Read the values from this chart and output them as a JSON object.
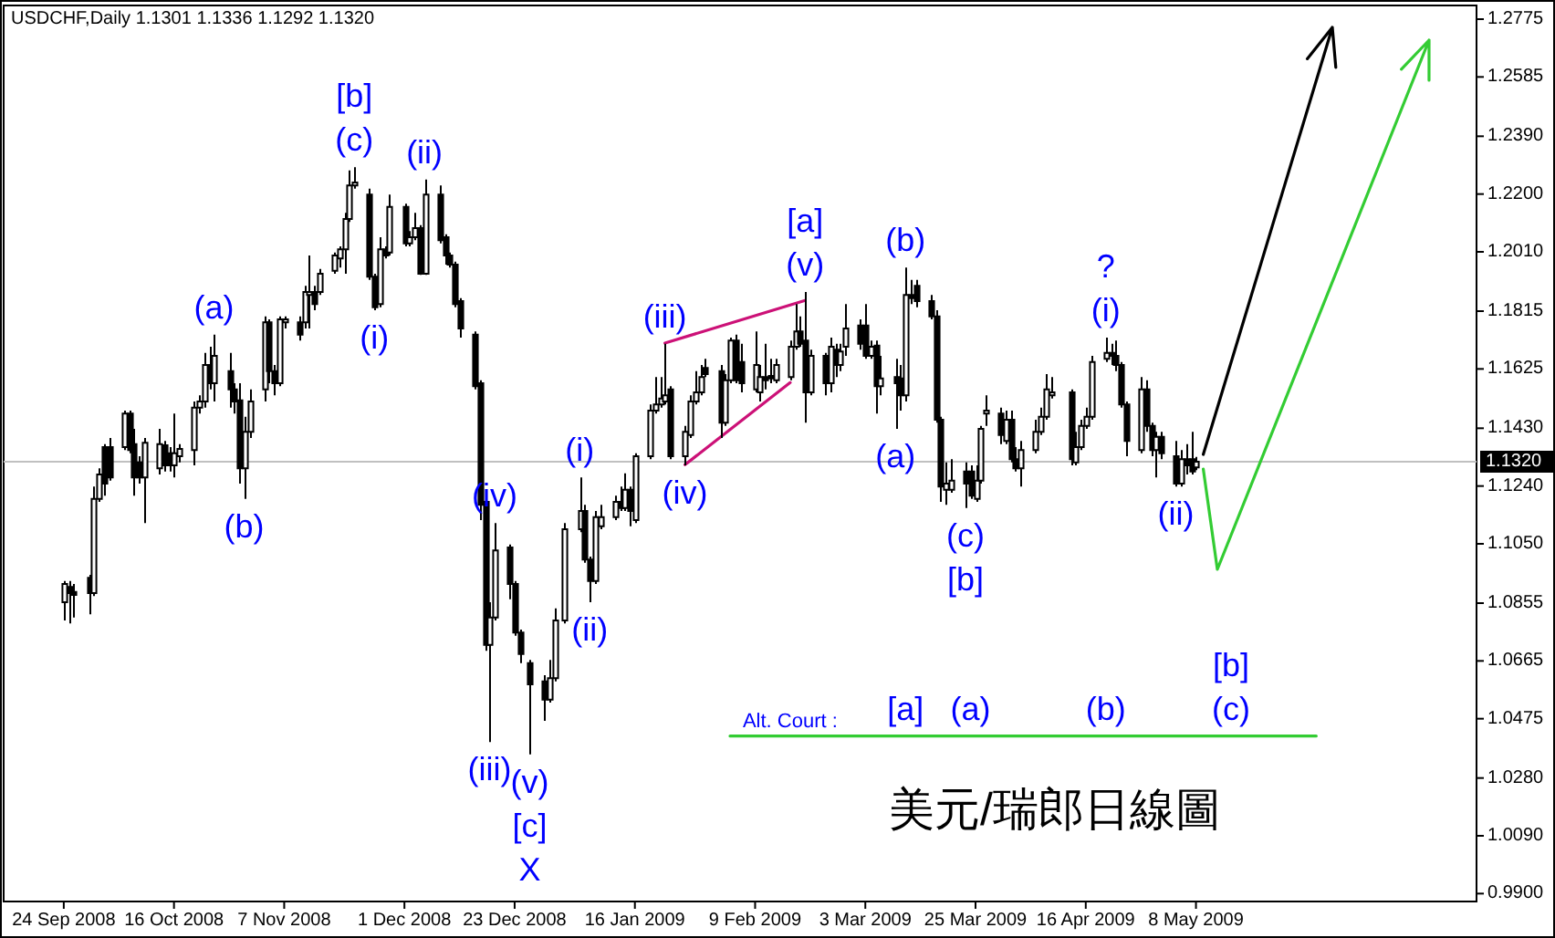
{
  "chart_data": {
    "type": "candlestick",
    "title": "USDCHF,Daily  1.1301 1.1336 1.1292 1.1320",
    "xlim": [
      "2008-09-12",
      "2009-07-03"
    ],
    "ylim": [
      0.9874,
      1.282
    ],
    "xticks": [
      {
        "value": "2008-09-24",
        "label": "24 Sep 2008"
      },
      {
        "value": "2008-10-16",
        "label": "16 Oct 2008"
      },
      {
        "value": "2008-11-07",
        "label": "7 Nov 2008"
      },
      {
        "value": "2008-12-01",
        "label": "1 Dec 2008"
      },
      {
        "value": "2008-12-23",
        "label": "23 Dec 2008"
      },
      {
        "value": "2009-01-16",
        "label": "16 Jan 2009"
      },
      {
        "value": "2009-02-09",
        "label": "9 Feb 2009"
      },
      {
        "value": "2009-03-03",
        "label": "3 Mar 2009"
      },
      {
        "value": "2009-03-25",
        "label": "25 Mar 2009"
      },
      {
        "value": "2009-04-16",
        "label": "16 Apr 2009"
      },
      {
        "value": "2009-05-08",
        "label": "8 May 2009"
      }
    ],
    "yticks": [
      {
        "value": 1.2775,
        "label": "1.2775"
      },
      {
        "value": 1.2585,
        "label": "1.2585"
      },
      {
        "value": 1.239,
        "label": "1.2390"
      },
      {
        "value": 1.22,
        "label": "1.2200"
      },
      {
        "value": 1.201,
        "label": "1.2010"
      },
      {
        "value": 1.1815,
        "label": "1.1815"
      },
      {
        "value": 1.1625,
        "label": "1.1625"
      },
      {
        "value": 1.143,
        "label": "1.1430"
      },
      {
        "value": 1.124,
        "label": "1.1240"
      },
      {
        "value": 1.105,
        "label": "1.1050"
      },
      {
        "value": 1.0855,
        "label": "1.0855"
      },
      {
        "value": 1.0665,
        "label": "1.0665"
      },
      {
        "value": 1.0475,
        "label": "1.0475"
      },
      {
        "value": 1.028,
        "label": "1.0280"
      },
      {
        "value": 1.009,
        "label": "1.0090"
      },
      {
        "value": 0.99,
        "label": "0.9900"
      }
    ],
    "x": [
      "2008-09-24",
      "2008-09-25",
      "2008-09-26",
      "2008-09-29",
      "2008-09-30",
      "2008-10-01",
      "2008-10-02",
      "2008-10-03",
      "2008-10-06",
      "2008-10-07",
      "2008-10-08",
      "2008-10-09",
      "2008-10-10",
      "2008-10-13",
      "2008-10-14",
      "2008-10-15",
      "2008-10-16",
      "2008-10-17",
      "2008-10-20",
      "2008-10-21",
      "2008-10-22",
      "2008-10-23",
      "2008-10-24",
      "2008-10-27",
      "2008-10-28",
      "2008-10-29",
      "2008-10-30",
      "2008-10-31",
      "2008-11-03",
      "2008-11-04",
      "2008-11-05",
      "2008-11-06",
      "2008-11-07",
      "2008-11-10",
      "2008-11-11",
      "2008-11-12",
      "2008-11-13",
      "2008-11-14",
      "2008-11-17",
      "2008-11-18",
      "2008-11-19",
      "2008-11-20",
      "2008-11-21",
      "2008-11-24",
      "2008-11-25",
      "2008-11-26",
      "2008-11-27",
      "2008-11-28",
      "2008-12-01",
      "2008-12-02",
      "2008-12-03",
      "2008-12-04",
      "2008-12-05",
      "2008-12-08",
      "2008-12-09",
      "2008-12-10",
      "2008-12-11",
      "2008-12-12",
      "2008-12-15",
      "2008-12-16",
      "2008-12-17",
      "2008-12-18",
      "2008-12-19",
      "2008-12-22",
      "2008-12-23",
      "2008-12-24",
      "2008-12-26",
      "2008-12-29",
      "2008-12-30",
      "2008-12-31",
      "2009-01-02",
      "2009-01-05",
      "2009-01-06",
      "2009-01-07",
      "2009-01-08",
      "2009-01-09",
      "2009-01-12",
      "2009-01-13",
      "2009-01-14",
      "2009-01-15",
      "2009-01-16",
      "2009-01-19",
      "2009-01-20",
      "2009-01-21",
      "2009-01-22",
      "2009-01-23",
      "2009-01-26",
      "2009-01-27",
      "2009-01-28",
      "2009-01-29",
      "2009-01-30",
      "2009-02-02",
      "2009-02-03",
      "2009-02-04",
      "2009-02-05",
      "2009-02-06",
      "2009-02-09",
      "2009-02-10",
      "2009-02-11",
      "2009-02-12",
      "2009-02-13",
      "2009-02-16",
      "2009-02-17",
      "2009-02-18",
      "2009-02-19",
      "2009-02-20",
      "2009-02-23",
      "2009-02-24",
      "2009-02-25",
      "2009-02-26",
      "2009-02-27",
      "2009-03-02",
      "2009-03-03",
      "2009-03-04",
      "2009-03-05",
      "2009-03-06",
      "2009-03-09",
      "2009-03-10",
      "2009-03-11",
      "2009-03-12",
      "2009-03-13",
      "2009-03-16",
      "2009-03-17",
      "2009-03-18",
      "2009-03-19",
      "2009-03-20",
      "2009-03-23",
      "2009-03-24",
      "2009-03-25",
      "2009-03-26",
      "2009-03-27",
      "2009-03-30",
      "2009-03-31",
      "2009-04-01",
      "2009-04-02",
      "2009-04-03",
      "2009-04-06",
      "2009-04-07",
      "2009-04-08",
      "2009-04-09",
      "2009-04-13",
      "2009-04-14",
      "2009-04-15",
      "2009-04-16",
      "2009-04-17",
      "2009-04-20",
      "2009-04-21",
      "2009-04-22",
      "2009-04-23",
      "2009-04-24",
      "2009-04-27",
      "2009-04-28",
      "2009-04-29",
      "2009-04-30",
      "2009-05-01",
      "2009-05-04",
      "2009-05-05",
      "2009-05-06",
      "2009-05-07",
      "2009-05-08"
    ],
    "ohlc": [
      [
        1.0858,
        1.0928,
        1.0798,
        1.0918
      ],
      [
        1.0908,
        1.0928,
        1.0788,
        1.0888
      ],
      [
        1.0892,
        1.0918,
        1.0808,
        1.0882
      ],
      [
        1.0938,
        1.0948,
        1.0818,
        1.0888
      ],
      [
        1.0888,
        1.1238,
        1.0878,
        1.1198
      ],
      [
        1.1198,
        1.1298,
        1.1188,
        1.1278
      ],
      [
        1.1368,
        1.1378,
        1.1208,
        1.1248
      ],
      [
        1.1368,
        1.1398,
        1.1258,
        1.1268
      ],
      [
        1.1368,
        1.1488,
        1.1358,
        1.1478
      ],
      [
        1.1478,
        1.1488,
        1.1348,
        1.1358
      ],
      [
        1.1378,
        1.1428,
        1.1208,
        1.1268
      ],
      [
        1.1318,
        1.1338,
        1.1248,
        1.1268
      ],
      [
        1.1268,
        1.1398,
        1.1118,
        1.1382
      ],
      [
        1.1298,
        1.1428,
        1.1278,
        1.1378
      ],
      [
        1.1374,
        1.1388,
        1.1288,
        1.1308
      ],
      [
        1.1348,
        1.1368,
        1.1288,
        1.1308
      ],
      [
        1.1308,
        1.1478,
        1.1268,
        1.1348
      ],
      [
        1.1338,
        1.1378,
        1.1318,
        1.1362
      ],
      [
        1.1358,
        1.1518,
        1.1308,
        1.1498
      ],
      [
        1.1498,
        1.1538,
        1.1478,
        1.1518
      ],
      [
        1.1518,
        1.1678,
        1.1498,
        1.1638
      ],
      [
        1.1638,
        1.1698,
        1.1558,
        1.1578
      ],
      [
        1.1578,
        1.1738,
        1.1518,
        1.1668
      ],
      [
        1.1618,
        1.1678,
        1.1498,
        1.1558
      ],
      [
        1.1558,
        1.1578,
        1.1478,
        1.1518
      ],
      [
        1.1522,
        1.1578,
        1.1248,
        1.1298
      ],
      [
        1.1298,
        1.1468,
        1.1198,
        1.1418
      ],
      [
        1.1418,
        1.1558,
        1.1398,
        1.1518
      ],
      [
        1.1558,
        1.1798,
        1.1518,
        1.1778
      ],
      [
        1.1778,
        1.1788,
        1.1578,
        1.1618
      ],
      [
        1.1618,
        1.1638,
        1.1538,
        1.1578
      ],
      [
        1.1578,
        1.1798,
        1.1568,
        1.1788
      ],
      [
        1.1778,
        1.1798,
        1.1758,
        1.1788
      ],
      [
        1.1778,
        1.1798,
        1.1718,
        1.1738
      ],
      [
        1.1778,
        1.1898,
        1.1758,
        1.1878
      ],
      [
        1.1868,
        1.1998,
        1.1758,
        1.1878
      ],
      [
        1.1878,
        1.1898,
        1.1818,
        1.1838
      ],
      [
        1.1878,
        1.1954,
        1.1868,
        1.1938
      ],
      [
        1.1948,
        1.2008,
        1.1938,
        1.1998
      ],
      [
        1.1988,
        1.2028,
        1.1958,
        1.2018
      ],
      [
        1.2018,
        1.2138,
        1.1938,
        1.2118
      ],
      [
        1.2118,
        1.2278,
        1.2108,
        1.2228
      ],
      [
        1.2228,
        1.2288,
        1.2218,
        1.2238
      ],
      [
        1.2198,
        1.2218,
        1.1918,
        1.1928
      ],
      [
        1.1928,
        1.1938,
        1.1818,
        1.1828
      ],
      [
        1.1838,
        1.2058,
        1.1828,
        1.2018
      ],
      [
        1.2018,
        1.2028,
        1.1988,
        1.1998
      ],
      [
        1.2008,
        1.2198,
        1.1998,
        1.2158
      ],
      [
        1.2158,
        1.2168,
        1.2028,
        1.2038
      ],
      [
        1.2038,
        1.2078,
        1.2028,
        1.2058
      ],
      [
        1.2058,
        1.2138,
        1.2048,
        1.2088
      ],
      [
        1.2088,
        1.2098,
        1.1934,
        1.1938
      ],
      [
        1.1938,
        1.2248,
        1.1934,
        1.2198
      ],
      [
        1.2198,
        1.2228,
        1.2038,
        1.2048
      ],
      [
        1.2058,
        1.2068,
        1.1968,
        1.1998
      ],
      [
        1.1998,
        1.2008,
        1.1958,
        1.1968
      ],
      [
        1.1968,
        1.1978,
        1.1828,
        1.1838
      ],
      [
        1.1848,
        1.1858,
        1.1728,
        1.1758
      ],
      [
        1.1738,
        1.1748,
        1.1558,
        1.1568
      ],
      [
        1.1578,
        1.1588,
        1.1128,
        1.1178
      ],
      [
        1.1188,
        1.1198,
        1.0698,
        1.0718
      ],
      [
        1.0718,
        1.0858,
        1.0398,
        1.0808
      ],
      [
        1.0808,
        1.1118,
        1.0798,
        1.1028
      ],
      [
        1.1038,
        1.1048,
        1.0868,
        1.0918
      ],
      [
        1.0918,
        1.0928,
        1.0748,
        1.0758
      ],
      [
        1.0758,
        1.0768,
        1.0658,
        1.0688
      ],
      [
        1.0658,
        1.0668,
        1.0358,
        1.0588
      ],
      [
        1.0598,
        1.0618,
        1.0468,
        1.0538
      ],
      [
        1.0538,
        1.0668,
        1.0528,
        1.0608
      ],
      [
        1.0608,
        1.0838,
        1.0598,
        1.0798
      ],
      [
        1.0798,
        1.1118,
        1.0788,
        1.1098
      ],
      [
        1.1098,
        1.1268,
        1.1088,
        1.1158
      ],
      [
        1.1158,
        1.1178,
        1.0988,
        1.0998
      ],
      [
        1.0998,
        1.1008,
        1.0858,
        1.0928
      ],
      [
        1.0928,
        1.1158,
        1.0918,
        1.1138
      ],
      [
        1.1108,
        1.1178,
        1.1098,
        1.1138
      ],
      [
        1.1138,
        1.1208,
        1.1128,
        1.1188
      ],
      [
        1.1188,
        1.1238,
        1.1158,
        1.1168
      ],
      [
        1.1168,
        1.1282,
        1.1158,
        1.1228
      ],
      [
        1.1228,
        1.1238,
        1.1108,
        1.1158
      ],
      [
        1.1128,
        1.1348,
        1.1118,
        1.1338
      ],
      [
        1.1338,
        1.1508,
        1.1328,
        1.1488
      ],
      [
        1.1488,
        1.1598,
        1.1478,
        1.1508
      ],
      [
        1.1508,
        1.1598,
        1.1498,
        1.1528
      ],
      [
        1.1518,
        1.1708,
        1.1508,
        1.1538
      ],
      [
        1.1558,
        1.1568,
        1.1328,
        1.1338
      ],
      [
        1.1338,
        1.1438,
        1.1308,
        1.1418
      ],
      [
        1.1408,
        1.1538,
        1.1398,
        1.1518
      ],
      [
        1.1518,
        1.1618,
        1.1508,
        1.1548
      ],
      [
        1.1548,
        1.1638,
        1.1538,
        1.1598
      ],
      [
        1.1628,
        1.1658,
        1.1598,
        1.1608
      ],
      [
        1.1618,
        1.1638,
        1.1398,
        1.1448
      ],
      [
        1.1448,
        1.1608,
        1.1438,
        1.1588
      ],
      [
        1.1588,
        1.1728,
        1.1578,
        1.1718
      ],
      [
        1.1718,
        1.1738,
        1.1578,
        1.1588
      ],
      [
        1.1648,
        1.1708,
        1.1548,
        1.1578
      ],
      [
        1.1558,
        1.1748,
        1.1548,
        1.1638
      ],
      [
        1.1548,
        1.1638,
        1.1518,
        1.1598
      ],
      [
        1.1598,
        1.1708,
        1.1558,
        1.1588
      ],
      [
        1.1602,
        1.1658,
        1.1578,
        1.1594
      ],
      [
        1.1588,
        1.1658,
        1.1578,
        1.1638
      ],
      [
        1.1598,
        1.1718,
        1.1588,
        1.1698
      ],
      [
        1.1698,
        1.1838,
        1.1688,
        1.1748
      ],
      [
        1.1748,
        1.1798,
        1.1698,
        1.1708
      ],
      [
        1.1718,
        1.1878,
        1.1448,
        1.1548
      ],
      [
        1.1548,
        1.1688,
        1.1538,
        1.1668
      ],
      [
        1.1668,
        1.1678,
        1.1538,
        1.1578
      ],
      [
        1.1578,
        1.1728,
        1.1548,
        1.1698
      ],
      [
        1.1688,
        1.1708,
        1.1598,
        1.1638
      ],
      [
        1.1638,
        1.1708,
        1.1618,
        1.1682
      ],
      [
        1.1698,
        1.1838,
        1.1668,
        1.1758
      ],
      [
        1.1768,
        1.1788,
        1.1688,
        1.1708
      ],
      [
        1.1768,
        1.1838,
        1.1658,
        1.1668
      ],
      [
        1.1668,
        1.1718,
        1.1658,
        1.1698
      ],
      [
        1.1702,
        1.1718,
        1.1478,
        1.1568
      ],
      [
        1.1568,
        1.1668,
        1.1538,
        1.1594
      ],
      [
        1.1598,
        1.1658,
        1.1428,
        1.1578
      ],
      [
        1.1594,
        1.1638,
        1.1488,
        1.1538
      ],
      [
        1.1538,
        1.1958,
        1.1518,
        1.1868
      ],
      [
        1.1868,
        1.1918,
        1.1838,
        1.1858
      ],
      [
        1.1898,
        1.1918,
        1.1828,
        1.1848
      ],
      [
        1.1848,
        1.1868,
        1.1788,
        1.1798
      ],
      [
        1.1798,
        1.1818,
        1.1448,
        1.1458
      ],
      [
        1.1458,
        1.1468,
        1.1188,
        1.1238
      ],
      [
        1.1228,
        1.1318,
        1.1178,
        1.1248
      ],
      [
        1.1228,
        1.1328,
        1.1218,
        1.1258
      ],
      [
        1.1288,
        1.1318,
        1.1168,
        1.1248
      ],
      [
        1.1288,
        1.1308,
        1.1198,
        1.1208
      ],
      [
        1.1198,
        1.1308,
        1.1188,
        1.1258
      ],
      [
        1.1258,
        1.1438,
        1.1248,
        1.1428
      ],
      [
        1.1478,
        1.1538,
        1.1438,
        1.1488
      ],
      [
        1.1478,
        1.1498,
        1.1378,
        1.1408
      ],
      [
        1.1388,
        1.1488,
        1.1378,
        1.1458
      ],
      [
        1.1458,
        1.1488,
        1.1318,
        1.1328
      ],
      [
        1.1328,
        1.1368,
        1.1288,
        1.1298
      ],
      [
        1.1298,
        1.1388,
        1.1238,
        1.1358
      ],
      [
        1.1358,
        1.1458,
        1.1348,
        1.1418
      ],
      [
        1.1418,
        1.1498,
        1.1408,
        1.1468
      ],
      [
        1.1468,
        1.1608,
        1.1458,
        1.1558
      ],
      [
        1.1538,
        1.1598,
        1.1528,
        1.1548
      ],
      [
        1.1548,
        1.1558,
        1.1308,
        1.1328
      ],
      [
        1.1318,
        1.1418,
        1.1308,
        1.1368
      ],
      [
        1.1368,
        1.1458,
        1.1358,
        1.1438
      ],
      [
        1.1438,
        1.1498,
        1.1428,
        1.1468
      ],
      [
        1.1468,
        1.1668,
        1.1458,
        1.1648
      ],
      [
        1.1658,
        1.1728,
        1.1648,
        1.1678
      ],
      [
        1.1678,
        1.1708,
        1.1638,
        1.1668
      ],
      [
        1.1668,
        1.1718,
        1.1618,
        1.1638
      ],
      [
        1.1638,
        1.1648,
        1.1498,
        1.1508
      ],
      [
        1.1508,
        1.1518,
        1.1338,
        1.1388
      ],
      [
        1.1358,
        1.1598,
        1.1348,
        1.1558
      ],
      [
        1.1558,
        1.1588,
        1.1418,
        1.1438
      ],
      [
        1.1438,
        1.1448,
        1.1338,
        1.1358
      ],
      [
        1.1358,
        1.1418,
        1.1268,
        1.1402
      ],
      [
        1.1402,
        1.1418,
        1.1328,
        1.1348
      ],
      [
        1.1338,
        1.1388,
        1.1238,
        1.1248
      ],
      [
        1.1248,
        1.1358,
        1.1238,
        1.1328
      ],
      [
        1.1328,
        1.1378,
        1.1278,
        1.1308
      ],
      [
        1.1328,
        1.1418,
        1.1278,
        1.1288
      ],
      [
        1.1301,
        1.1336,
        1.1292,
        1.132
      ]
    ],
    "series": [
      {
        "type": "line",
        "color": "#cc1177",
        "x": [
          "2009-01-22",
          "2009-02-19"
        ],
        "values": [
          1.171,
          1.185
        ]
      },
      {
        "type": "line",
        "color": "#cc1177",
        "x": [
          "2009-01-26",
          "2009-02-16"
        ],
        "values": [
          1.131,
          1.158
        ]
      },
      {
        "type": "line",
        "color": "#33cc33",
        "x": [
          "2009-02-04",
          "2009-06-01"
        ],
        "values": [
          1.0418,
          1.0418
        ]
      }
    ],
    "ref_lines": [
      {
        "axis": "y",
        "value": 1.132,
        "label": "1.1320",
        "color": "#c0c0c0"
      }
    ],
    "annotations": [
      {
        "text": "(c)",
        "x": "2008-11-21",
        "y": 1.2288
      },
      {
        "text": "[b]",
        "x": "2008-11-21",
        "y": 1.2288
      },
      {
        "text": "(ii)",
        "x": "2008-12-05",
        "y": 1.2248
      },
      {
        "text": "(i)",
        "x": "2008-11-25",
        "y": 1.1818
      },
      {
        "text": "(a)",
        "x": "2008-10-24",
        "y": 1.1738
      },
      {
        "text": "(b)",
        "x": "2008-10-30",
        "y": 1.1198
      },
      {
        "text": "(i)",
        "x": "2009-01-05",
        "y": 1.1268
      },
      {
        "text": "(ii)",
        "x": "2009-01-07",
        "y": 1.0858
      },
      {
        "text": "(iii)",
        "x": "2008-12-18",
        "y": 1.0398
      },
      {
        "text": "(iv)",
        "x": "2008-12-19",
        "y": 1.1118
      },
      {
        "text": "(v)",
        "x": "2008-12-26",
        "y": 1.0358
      },
      {
        "text": "[c]",
        "x": "2008-12-26",
        "y": 1.0358
      },
      {
        "text": "X",
        "x": "2008-12-26",
        "y": 1.0358
      },
      {
        "text": "(iii)",
        "x": "2009-01-22",
        "y": 1.1708
      },
      {
        "text": "(iv)",
        "x": "2009-01-26",
        "y": 1.1308
      },
      {
        "text": "(v)",
        "x": "2009-02-19",
        "y": 1.1878
      },
      {
        "text": "[a]",
        "x": "2009-02-19",
        "y": 1.1878
      },
      {
        "text": "(b)",
        "x": "2009-03-11",
        "y": 1.1958
      },
      {
        "text": "(a)",
        "x": "2009-03-09",
        "y": 1.1428
      },
      {
        "text": "(c)",
        "x": "2009-03-23",
        "y": 1.1168
      },
      {
        "text": "[b]",
        "x": "2009-03-23",
        "y": 1.1168
      },
      {
        "text": "(i)",
        "x": "2009-04-20",
        "y": 1.1728
      },
      {
        "text": "?",
        "x": "2009-04-20",
        "y": 1.1728
      },
      {
        "text": "(ii)",
        "x": "2009-05-04",
        "y": 1.1238
      },
      {
        "text": "Alt. Court :",
        "x": "2009-02-16",
        "y": 1.0418
      },
      {
        "text": "[a]",
        "x": "2009-03-11",
        "y": 1.0418
      },
      {
        "text": "(a)",
        "x": "2009-03-24",
        "y": 1.0418
      },
      {
        "text": "(b)",
        "x": "2009-04-20",
        "y": 1.0418
      },
      {
        "text": "(c)",
        "x": "2009-05-15",
        "y": 1.0418
      },
      {
        "text": "[b]",
        "x": "2009-05-15",
        "y": 1.0418
      },
      "美元/瑞郎日線圖"
    ]
  }
}
